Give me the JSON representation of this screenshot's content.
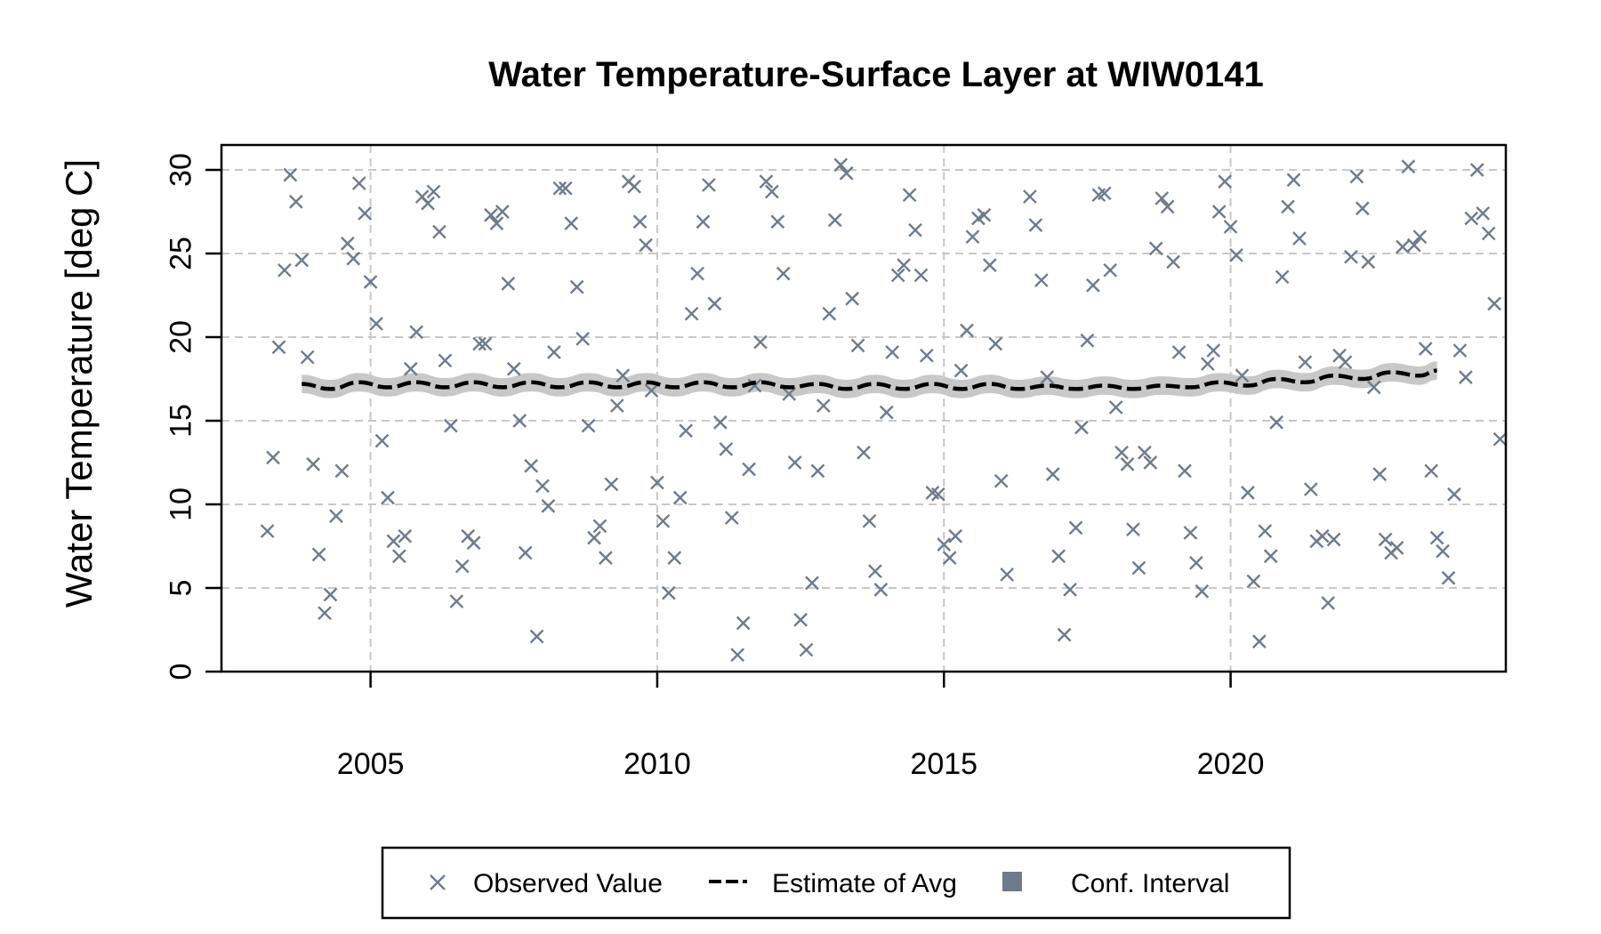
{
  "chart_data": {
    "type": "scatter",
    "title": "Water Temperature-Surface Layer at WIW0141",
    "xlabel": "",
    "ylabel": "Water Temperature [deg C]",
    "xlim": [
      2002.4,
      2024.8
    ],
    "ylim": [
      0,
      31.5
    ],
    "x_ticks": [
      2005,
      2010,
      2015,
      2020
    ],
    "y_ticks": [
      0,
      5,
      10,
      15,
      20,
      25,
      30
    ],
    "grid": true,
    "legend_position": "bottom",
    "colors": {
      "observed": "#6e7b8b",
      "estimate": "#000000",
      "ci": "#c8c8c8",
      "ci_legend": "#6e7b8b"
    },
    "series": [
      {
        "name": "Observed Value",
        "marker": "x",
        "points": [
          [
            2003.2,
            8.4
          ],
          [
            2003.3,
            12.8
          ],
          [
            2003.4,
            19.4
          ],
          [
            2003.5,
            24.0
          ],
          [
            2003.6,
            29.7
          ],
          [
            2003.7,
            28.1
          ],
          [
            2003.8,
            24.6
          ],
          [
            2003.9,
            18.8
          ],
          [
            2004.0,
            12.4
          ],
          [
            2004.1,
            7.0
          ],
          [
            2004.2,
            3.5
          ],
          [
            2004.3,
            4.6
          ],
          [
            2004.4,
            9.3
          ],
          [
            2004.5,
            12.0
          ],
          [
            2004.6,
            25.6
          ],
          [
            2004.7,
            24.7
          ],
          [
            2004.8,
            29.2
          ],
          [
            2004.9,
            27.4
          ],
          [
            2005.0,
            23.3
          ],
          [
            2005.1,
            20.8
          ],
          [
            2005.2,
            13.8
          ],
          [
            2005.3,
            10.4
          ],
          [
            2005.4,
            7.8
          ],
          [
            2005.5,
            6.9
          ],
          [
            2005.6,
            8.1
          ],
          [
            2005.7,
            18.1
          ],
          [
            2005.8,
            20.3
          ],
          [
            2005.9,
            28.4
          ],
          [
            2006.0,
            28.0
          ],
          [
            2006.1,
            28.7
          ],
          [
            2006.2,
            26.3
          ],
          [
            2006.3,
            18.6
          ],
          [
            2006.4,
            14.7
          ],
          [
            2006.5,
            4.2
          ],
          [
            2006.6,
            6.3
          ],
          [
            2006.7,
            8.1
          ],
          [
            2006.8,
            7.7
          ],
          [
            2006.9,
            19.6
          ],
          [
            2007.0,
            19.6
          ],
          [
            2007.1,
            27.3
          ],
          [
            2007.2,
            26.8
          ],
          [
            2007.3,
            27.5
          ],
          [
            2007.4,
            23.2
          ],
          [
            2007.5,
            18.1
          ],
          [
            2007.6,
            15.0
          ],
          [
            2007.7,
            7.1
          ],
          [
            2007.8,
            12.3
          ],
          [
            2007.9,
            2.1
          ],
          [
            2008.0,
            11.1
          ],
          [
            2008.1,
            9.9
          ],
          [
            2008.2,
            19.1
          ],
          [
            2008.3,
            28.9
          ],
          [
            2008.4,
            28.9
          ],
          [
            2008.5,
            26.8
          ],
          [
            2008.6,
            23.0
          ],
          [
            2008.7,
            19.9
          ],
          [
            2008.8,
            14.7
          ],
          [
            2008.9,
            8.0
          ],
          [
            2009.0,
            8.7
          ],
          [
            2009.1,
            6.8
          ],
          [
            2009.2,
            11.2
          ],
          [
            2009.3,
            15.9
          ],
          [
            2009.4,
            17.7
          ],
          [
            2009.5,
            29.3
          ],
          [
            2009.6,
            29.0
          ],
          [
            2009.7,
            26.9
          ],
          [
            2009.8,
            25.5
          ],
          [
            2009.9,
            16.8
          ],
          [
            2010.0,
            11.3
          ],
          [
            2010.1,
            9.0
          ],
          [
            2010.2,
            4.7
          ],
          [
            2010.3,
            6.8
          ],
          [
            2010.4,
            10.4
          ],
          [
            2010.5,
            14.4
          ],
          [
            2010.6,
            21.4
          ],
          [
            2010.7,
            23.8
          ],
          [
            2010.8,
            26.9
          ],
          [
            2010.9,
            29.1
          ],
          [
            2011.0,
            22.0
          ],
          [
            2011.1,
            14.9
          ],
          [
            2011.2,
            13.3
          ],
          [
            2011.3,
            9.2
          ],
          [
            2011.4,
            1.0
          ],
          [
            2011.5,
            2.9
          ],
          [
            2011.6,
            12.1
          ],
          [
            2011.7,
            17.1
          ],
          [
            2011.8,
            19.7
          ],
          [
            2011.9,
            29.3
          ],
          [
            2012.0,
            28.7
          ],
          [
            2012.1,
            26.9
          ],
          [
            2012.2,
            23.8
          ],
          [
            2012.3,
            16.6
          ],
          [
            2012.4,
            12.5
          ],
          [
            2012.5,
            3.1
          ],
          [
            2012.6,
            1.3
          ],
          [
            2012.7,
            5.3
          ],
          [
            2012.8,
            12.0
          ],
          [
            2012.9,
            15.9
          ],
          [
            2013.0,
            21.4
          ],
          [
            2013.1,
            27.0
          ],
          [
            2013.2,
            30.3
          ],
          [
            2013.3,
            29.8
          ],
          [
            2013.4,
            22.3
          ],
          [
            2013.5,
            19.5
          ],
          [
            2013.6,
            13.1
          ],
          [
            2013.7,
            9.0
          ],
          [
            2013.8,
            6.0
          ],
          [
            2013.9,
            4.9
          ],
          [
            2014.0,
            15.5
          ],
          [
            2014.1,
            19.1
          ],
          [
            2014.2,
            23.7
          ],
          [
            2014.3,
            24.3
          ],
          [
            2014.4,
            28.5
          ],
          [
            2014.5,
            26.4
          ],
          [
            2014.6,
            23.7
          ],
          [
            2014.7,
            18.9
          ],
          [
            2014.8,
            10.7
          ],
          [
            2014.9,
            10.6
          ],
          [
            2015.0,
            7.6
          ],
          [
            2015.1,
            6.8
          ],
          [
            2015.2,
            8.1
          ],
          [
            2015.3,
            18.0
          ],
          [
            2015.4,
            20.4
          ],
          [
            2015.5,
            26.0
          ],
          [
            2015.6,
            27.1
          ],
          [
            2015.7,
            27.3
          ],
          [
            2015.8,
            24.3
          ],
          [
            2015.9,
            19.6
          ],
          [
            2016.0,
            11.4
          ],
          [
            2016.1,
            5.8
          ],
          [
            2016.5,
            28.4
          ],
          [
            2016.6,
            26.7
          ],
          [
            2016.7,
            23.4
          ],
          [
            2016.8,
            17.6
          ],
          [
            2016.9,
            11.8
          ],
          [
            2017.0,
            6.9
          ],
          [
            2017.1,
            2.2
          ],
          [
            2017.2,
            4.9
          ],
          [
            2017.3,
            8.6
          ],
          [
            2017.4,
            14.6
          ],
          [
            2017.5,
            19.8
          ],
          [
            2017.6,
            23.1
          ],
          [
            2017.7,
            28.5
          ],
          [
            2017.8,
            28.6
          ],
          [
            2017.9,
            24.0
          ],
          [
            2018.0,
            15.8
          ],
          [
            2018.1,
            13.1
          ],
          [
            2018.2,
            12.4
          ],
          [
            2018.3,
            8.5
          ],
          [
            2018.4,
            6.2
          ],
          [
            2018.5,
            13.1
          ],
          [
            2018.6,
            12.5
          ],
          [
            2018.7,
            25.3
          ],
          [
            2018.8,
            28.3
          ],
          [
            2018.9,
            27.8
          ],
          [
            2019.0,
            24.5
          ],
          [
            2019.1,
            19.1
          ],
          [
            2019.2,
            12.0
          ],
          [
            2019.3,
            8.3
          ],
          [
            2019.4,
            6.5
          ],
          [
            2019.5,
            4.8
          ],
          [
            2019.6,
            18.4
          ],
          [
            2019.7,
            19.2
          ],
          [
            2019.8,
            27.5
          ],
          [
            2019.9,
            29.3
          ],
          [
            2020.0,
            26.6
          ],
          [
            2020.1,
            24.9
          ],
          [
            2020.2,
            17.7
          ],
          [
            2020.3,
            10.7
          ],
          [
            2020.4,
            5.4
          ],
          [
            2020.5,
            1.8
          ],
          [
            2020.6,
            8.4
          ],
          [
            2020.7,
            6.9
          ],
          [
            2020.8,
            14.9
          ],
          [
            2020.9,
            23.6
          ],
          [
            2021.0,
            27.8
          ],
          [
            2021.1,
            29.4
          ],
          [
            2021.2,
            25.9
          ],
          [
            2021.3,
            18.5
          ],
          [
            2021.4,
            10.9
          ],
          [
            2021.5,
            7.8
          ],
          [
            2021.6,
            8.1
          ],
          [
            2021.7,
            4.1
          ],
          [
            2021.8,
            7.9
          ],
          [
            2021.9,
            18.9
          ],
          [
            2022.0,
            18.5
          ],
          [
            2022.1,
            24.8
          ],
          [
            2022.2,
            29.6
          ],
          [
            2022.3,
            27.7
          ],
          [
            2022.4,
            24.5
          ],
          [
            2022.5,
            17.0
          ],
          [
            2022.6,
            11.8
          ],
          [
            2022.7,
            7.9
          ],
          [
            2022.8,
            7.1
          ],
          [
            2022.9,
            7.4
          ],
          [
            2023.0,
            25.4
          ],
          [
            2023.1,
            30.2
          ],
          [
            2023.2,
            25.5
          ],
          [
            2023.3,
            26.0
          ],
          [
            2023.4,
            19.3
          ],
          [
            2023.5,
            12.0
          ],
          [
            2023.6,
            8.0
          ],
          [
            2023.7,
            7.2
          ],
          [
            2023.8,
            5.6
          ],
          [
            2023.9,
            10.6
          ],
          [
            2024.0,
            19.2
          ],
          [
            2024.1,
            17.6
          ],
          [
            2024.2,
            27.1
          ],
          [
            2024.3,
            30.0
          ],
          [
            2024.4,
            27.4
          ],
          [
            2024.5,
            26.2
          ],
          [
            2024.6,
            22.0
          ],
          [
            2024.7,
            13.9
          ]
        ]
      },
      {
        "name": "Estimate of Avg",
        "x_start": 2003.8,
        "x_end": 2023.6,
        "values_note": "",
        "points": [
          [
            2003.8,
            17.2
          ],
          [
            2004.3,
            16.9
          ],
          [
            2004.8,
            17.3
          ],
          [
            2005.3,
            17.0
          ],
          [
            2005.8,
            17.3
          ],
          [
            2006.3,
            17.0
          ],
          [
            2006.8,
            17.3
          ],
          [
            2007.3,
            17.0
          ],
          [
            2007.8,
            17.3
          ],
          [
            2008.3,
            17.0
          ],
          [
            2008.8,
            17.3
          ],
          [
            2009.3,
            17.0
          ],
          [
            2009.8,
            17.3
          ],
          [
            2010.3,
            17.0
          ],
          [
            2010.8,
            17.3
          ],
          [
            2011.3,
            17.0
          ],
          [
            2011.8,
            17.3
          ],
          [
            2012.3,
            17.0
          ],
          [
            2012.8,
            17.2
          ],
          [
            2013.3,
            16.9
          ],
          [
            2013.8,
            17.2
          ],
          [
            2014.3,
            16.9
          ],
          [
            2014.8,
            17.2
          ],
          [
            2015.3,
            16.9
          ],
          [
            2015.8,
            17.2
          ],
          [
            2016.3,
            16.9
          ],
          [
            2016.8,
            17.1
          ],
          [
            2017.3,
            16.9
          ],
          [
            2017.8,
            17.1
          ],
          [
            2018.3,
            16.9
          ],
          [
            2018.8,
            17.1
          ],
          [
            2019.3,
            17.0
          ],
          [
            2019.8,
            17.3
          ],
          [
            2020.3,
            17.1
          ],
          [
            2020.8,
            17.5
          ],
          [
            2021.3,
            17.3
          ],
          [
            2021.8,
            17.7
          ],
          [
            2022.3,
            17.5
          ],
          [
            2022.8,
            17.9
          ],
          [
            2023.3,
            17.7
          ],
          [
            2023.6,
            18.0
          ]
        ],
        "ci_halfwidth": 0.55
      }
    ],
    "legend": [
      {
        "key": "observed",
        "label": "Observed Value"
      },
      {
        "key": "estimate",
        "label": "Estimate of Avg"
      },
      {
        "key": "ci",
        "label": "Conf. Interval"
      }
    ]
  }
}
